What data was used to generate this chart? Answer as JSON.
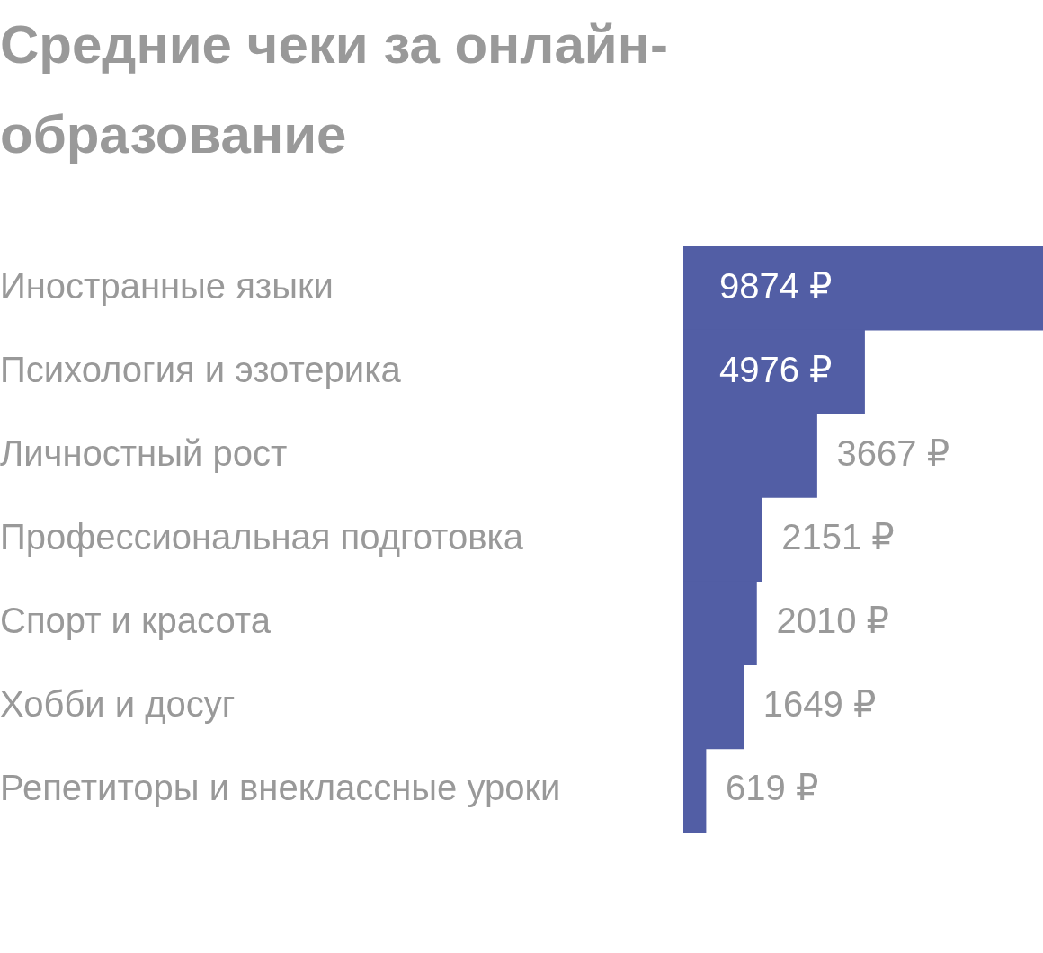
{
  "chart_data": {
    "type": "bar",
    "title": "Средние чеки за онлайн-образование",
    "orientation": "horizontal",
    "color": "#525ea5",
    "categories": [
      "Иностранные языки",
      "Психология и эзотерика",
      "Личностный рост",
      "Профессиональная подготовка",
      "Спорт и красота",
      "Хобби и досуг",
      "Репетиторы и внеклассные уроки"
    ],
    "values": [
      9874,
      4976,
      3667,
      2151,
      2010,
      1649,
      619
    ],
    "value_labels": [
      "9874 ₽",
      "4976 ₽",
      "3667 ₽",
      "2151 ₽",
      "2010 ₽",
      "1649 ₽",
      "619 ₽"
    ]
  }
}
